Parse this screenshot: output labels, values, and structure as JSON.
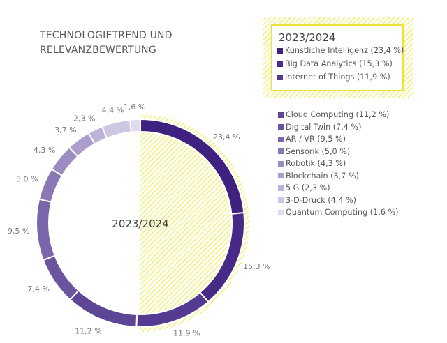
{
  "chart_data": {
    "type": "pie",
    "title": "TECHNOLOGIETREND UND RELEVANZBEWERTUNG",
    "title_lines": [
      "TECHNOLOGIETREND UND",
      "RELEVANZBEWERTUNG"
    ],
    "center_label": "2023/2024",
    "highlight_box": {
      "title": "2023/2024",
      "border_color": "#eee23a"
    },
    "slices": [
      {
        "name": "Künstliche Intelligenz",
        "value": 23.4,
        "label": "23,4 %",
        "legend": "Künstliche Intelligenz (23,4 %)",
        "color": "#3f2180",
        "highlight": true
      },
      {
        "name": "Big Data Analytics",
        "value": 15.3,
        "label": "15,3 %",
        "legend": "Big Data Analytics (15,3 %)",
        "color": "#472a88",
        "highlight": true
      },
      {
        "name": "Internet of Things",
        "value": 11.9,
        "label": "11,9 %",
        "legend": "Internet of Things (11,9 %)",
        "color": "#553a92",
        "highlight": true
      },
      {
        "name": "Cloud Computing",
        "value": 11.2,
        "label": "11,2 %",
        "legend": "Cloud Computing (11,2 %)",
        "color": "#5e4697"
      },
      {
        "name": "Digital Twin",
        "value": 7.4,
        "label": "7,4 %",
        "legend": "Digital Twin (7,4 %)",
        "color": "#6a549f"
      },
      {
        "name": "AR / VR",
        "value": 9.5,
        "label": "9,5 %",
        "legend": "AR / VR (9,5 %)",
        "color": "#7a66ab"
      },
      {
        "name": "Sensorik",
        "value": 5.0,
        "label": "5,0 %",
        "legend": "Sensorik (5,0 %)",
        "color": "#8a78b6"
      },
      {
        "name": "Robotik",
        "value": 4.3,
        "label": "4,3 %",
        "legend": "Robotik (4,3 %)",
        "color": "#9b8cc2"
      },
      {
        "name": "Blockchain",
        "value": 3.7,
        "label": "3,7 %",
        "legend": "Blockchain (3,7 %)",
        "color": "#ac9fcd"
      },
      {
        "name": "5 G",
        "value": 2.3,
        "label": "2,3 %",
        "legend": "5 G (2,3 %)",
        "color": "#bdb2d8"
      },
      {
        "name": "3-D-Druck",
        "value": 4.4,
        "label": "4,4 %",
        "legend": "3-D-Druck (4,4 %)",
        "color": "#cec7e3"
      },
      {
        "name": "Quantum Computing",
        "value": 1.6,
        "label": "1,6 %",
        "legend": "Quantum Computing (1,6 %)",
        "color": "#dedbec"
      }
    ]
  }
}
